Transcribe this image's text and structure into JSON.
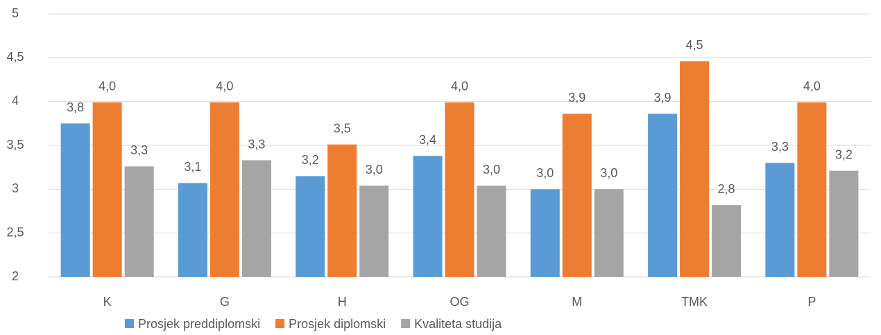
{
  "chart_data": {
    "type": "bar",
    "categories": [
      "K",
      "G",
      "H",
      "OG",
      "M",
      "TMK",
      "P"
    ],
    "series": [
      {
        "name": "Prosjek preddiplomski",
        "color": "#5b9bd5",
        "values": [
          3.75,
          3.07,
          3.15,
          3.38,
          3.0,
          3.86,
          3.3
        ],
        "value_labels": [
          "3,8",
          "3,1",
          "3,2",
          "3,4",
          "3,0",
          "3,9",
          "3,3"
        ]
      },
      {
        "name": "Prosjek diplomski",
        "color": "#ed7d31",
        "values": [
          3.99,
          3.99,
          3.51,
          3.99,
          3.86,
          4.46,
          3.99
        ],
        "value_labels": [
          "4,0",
          "4,0",
          "3,5",
          "4,0",
          "3,9",
          "4,5",
          "4,0"
        ]
      },
      {
        "name": "Kvaliteta studija",
        "color": "#a5a5a5",
        "values": [
          3.26,
          3.33,
          3.04,
          3.04,
          3.0,
          2.82,
          3.21
        ],
        "value_labels": [
          "3,3",
          "3,3",
          "3,0",
          "3,0",
          "3,0",
          "2,8",
          "3,2"
        ]
      }
    ],
    "ylim": [
      2,
      5
    ],
    "yticks": [
      2,
      {
        "value": 2.5,
        "label": "2,5"
      },
      3,
      {
        "value": 3.5,
        "label": "3,5"
      },
      4,
      {
        "value": 4.5,
        "label": "4,5"
      },
      5
    ],
    "grid": true,
    "legend": "bottom"
  }
}
